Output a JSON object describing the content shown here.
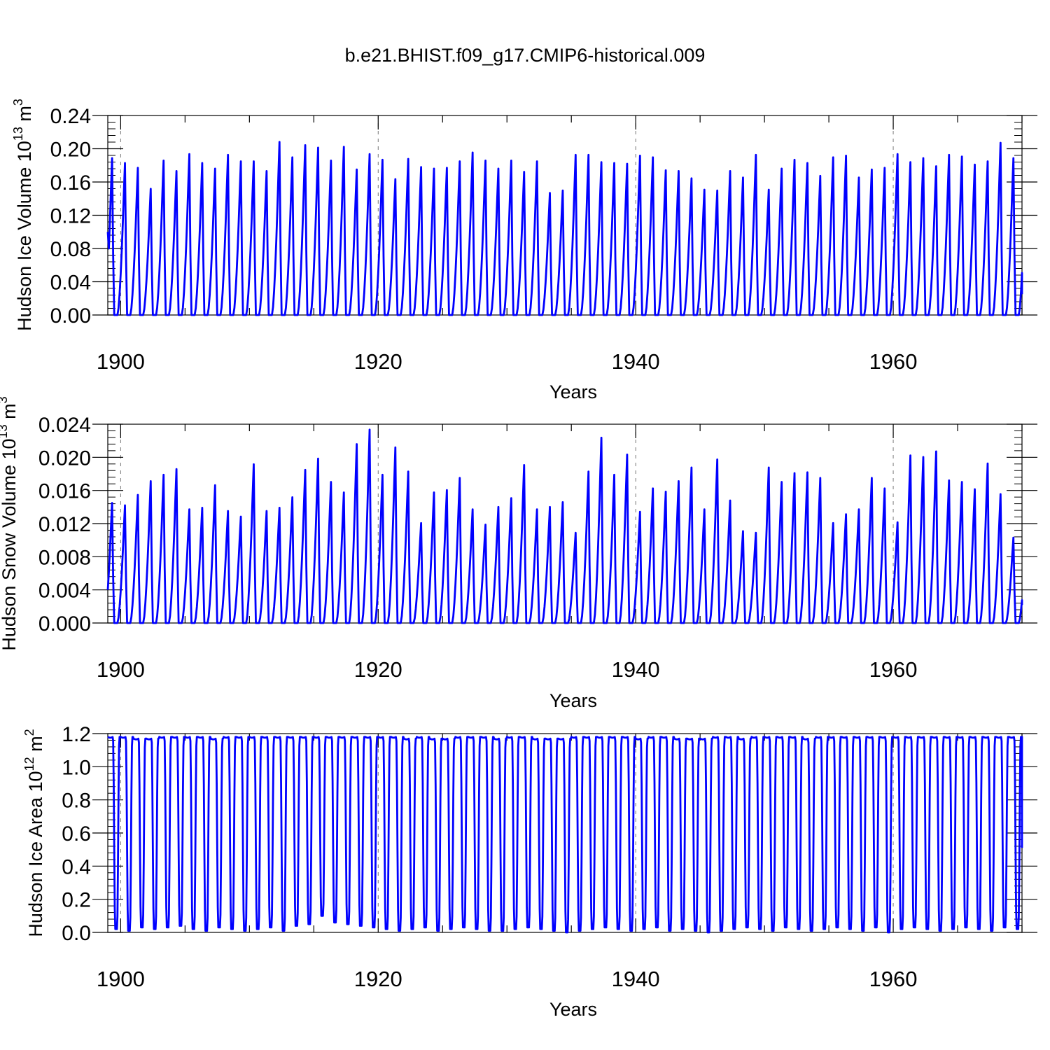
{
  "page": {
    "title": "b.e21.BHIST.f09_g17.CMIP6-historical.009"
  },
  "style": {
    "line_color": "#0000ff",
    "axis_color": "#000000",
    "grid_color": "#777777"
  },
  "chart_data": [
    {
      "type": "line",
      "title": "",
      "ylabel": "Hudson Ice Volume 10",
      "ylabel_exp": "13",
      "ylabel_unit": " m",
      "ylabel_unit_exp": "3",
      "xlabel": "Years",
      "xlim": [
        1899.0,
        1970.0
      ],
      "ylim": [
        0.0,
        0.24
      ],
      "yticks": [
        0.0,
        0.04,
        0.08,
        0.12,
        0.16,
        0.2,
        0.24
      ],
      "ytick_labels": [
        "0.00",
        "0.04",
        "0.08",
        "0.12",
        "0.16",
        "0.20",
        "0.24"
      ],
      "xticks": [
        1900,
        1920,
        1940,
        1960
      ],
      "xtick_labels": [
        "1900",
        "1920",
        "1940",
        "1960"
      ],
      "grid_x": [
        1900,
        1920,
        1940,
        1960
      ],
      "series": [
        {
          "start_value": 0.1,
          "end_value": 0.025,
          "annual_peak_month": 4,
          "annual_min": 0.0,
          "annual_peaks": [
            0.194,
            0.188,
            0.182,
            0.156,
            0.191,
            0.178,
            0.199,
            0.188,
            0.181,
            0.198,
            0.19,
            0.19,
            0.178,
            0.214,
            0.195,
            0.21,
            0.207,
            0.191,
            0.208,
            0.18,
            0.199,
            0.192,
            0.168,
            0.193,
            0.183,
            0.181,
            0.182,
            0.19,
            0.201,
            0.191,
            0.181,
            0.191,
            0.177,
            0.19,
            0.151,
            0.154,
            0.198,
            0.198,
            0.189,
            0.188,
            0.187,
            0.197,
            0.195,
            0.179,
            0.178,
            0.169,
            0.155,
            0.154,
            0.178,
            0.17,
            0.198,
            0.155,
            0.181,
            0.192,
            0.188,
            0.172,
            0.195,
            0.197,
            0.17,
            0.18,
            0.182,
            0.199,
            0.189,
            0.194,
            0.184,
            0.198,
            0.196,
            0.186,
            0.19,
            0.213,
            0.194
          ]
        }
      ]
    },
    {
      "type": "line",
      "title": "",
      "ylabel": "Hudson Snow Volume 10",
      "ylabel_exp": "13",
      "ylabel_unit": " m",
      "ylabel_unit_exp": "3",
      "xlabel": "Years",
      "xlim": [
        1899.0,
        1970.0
      ],
      "ylim": [
        0.0,
        0.024
      ],
      "yticks": [
        0.0,
        0.004,
        0.008,
        0.012,
        0.016,
        0.02,
        0.024
      ],
      "ytick_labels": [
        "0.000",
        "0.004",
        "0.008",
        "0.012",
        "0.016",
        "0.020",
        "0.024"
      ],
      "xticks": [
        1900,
        1920,
        1940,
        1960
      ],
      "xtick_labels": [
        "1900",
        "1920",
        "1940",
        "1960"
      ],
      "grid_x": [
        1900,
        1920,
        1940,
        1960
      ],
      "series": [
        {
          "start_value": 0.004,
          "end_value": 0.0022,
          "annual_peak_month": 4,
          "annual_min": 0.0,
          "annual_peaks": [
            0.0149,
            0.0146,
            0.0159,
            0.0176,
            0.0184,
            0.0191,
            0.0141,
            0.0143,
            0.0171,
            0.0139,
            0.0132,
            0.0197,
            0.0139,
            0.0143,
            0.0156,
            0.019,
            0.0204,
            0.0175,
            0.0162,
            0.0222,
            0.024,
            0.0184,
            0.0218,
            0.0188,
            0.0124,
            0.0162,
            0.0165,
            0.018,
            0.0141,
            0.0122,
            0.0144,
            0.0155,
            0.0196,
            0.0141,
            0.0144,
            0.015,
            0.0112,
            0.0188,
            0.023,
            0.0184,
            0.0209,
            0.0138,
            0.0167,
            0.0163,
            0.0176,
            0.0193,
            0.0141,
            0.0203,
            0.0152,
            0.0114,
            0.0112,
            0.0193,
            0.0175,
            0.0186,
            0.0187,
            0.018,
            0.0124,
            0.0135,
            0.0141,
            0.018,
            0.0167,
            0.0125,
            0.0208,
            0.0206,
            0.0213,
            0.0177,
            0.0175,
            0.0166,
            0.0198,
            0.016,
            0.0106
          ]
        }
      ]
    },
    {
      "type": "line",
      "title": "",
      "ylabel": "Hudson Ice Area 10",
      "ylabel_exp": "12",
      "ylabel_unit": " m",
      "ylabel_unit_exp": "2",
      "xlabel": "Years",
      "xlim": [
        1899.0,
        1970.0
      ],
      "ylim": [
        0.0,
        1.2
      ],
      "yticks": [
        0.0,
        0.2,
        0.4,
        0.6,
        0.8,
        1.0,
        1.2
      ],
      "ytick_labels": [
        "0.0",
        "0.2",
        "0.4",
        "0.6",
        "0.8",
        "1.0",
        "1.2"
      ],
      "xticks": [
        1900,
        1920,
        1940,
        1960
      ],
      "xtick_labels": [
        "1900",
        "1920",
        "1940",
        "1960"
      ],
      "grid_x": [
        1900,
        1920,
        1940,
        1960
      ],
      "series": [
        {
          "start_value": 1.18,
          "end_value": 0.51,
          "annual_plateau": [
            1.18,
            1.18,
            1.17,
            1.17,
            1.18,
            1.18,
            1.18,
            1.18,
            1.17,
            1.18,
            1.18,
            1.18,
            1.18,
            1.18,
            1.18,
            1.18,
            1.18,
            1.18,
            1.18,
            1.18,
            1.18,
            1.18,
            1.18,
            1.17,
            1.18,
            1.17,
            1.17,
            1.18,
            1.18,
            1.18,
            1.17,
            1.18,
            1.18,
            1.17,
            1.17,
            1.17,
            1.18,
            1.18,
            1.18,
            1.18,
            1.18,
            1.17,
            1.18,
            1.18,
            1.17,
            1.17,
            1.17,
            1.18,
            1.18,
            1.17,
            1.18,
            1.18,
            1.18,
            1.18,
            1.17,
            1.18,
            1.18,
            1.18,
            1.18,
            1.18,
            1.18,
            1.18,
            1.18,
            1.18,
            1.18,
            1.18,
            1.18,
            1.18,
            1.18,
            1.18,
            1.18
          ],
          "annual_minima": [
            0.02,
            0.01,
            0.03,
            0.02,
            0.03,
            0.04,
            0.02,
            0.01,
            0.03,
            0.02,
            0.01,
            0.02,
            0.03,
            0.01,
            0.04,
            0.05,
            0.1,
            0.06,
            0.05,
            0.04,
            0.03,
            0.02,
            0.01,
            0.02,
            0.03,
            0.01,
            0.02,
            0.03,
            0.02,
            0.01,
            0.01,
            0.02,
            0.03,
            0.02,
            0.01,
            0.0,
            0.01,
            0.02,
            0.03,
            0.02,
            0.01,
            0.02,
            0.03,
            0.01,
            0.02,
            0.01,
            0.0,
            0.01,
            0.02,
            0.03,
            0.02,
            0.01,
            0.03,
            0.02,
            0.01,
            0.02,
            0.03,
            0.02,
            0.01,
            0.03,
            0.0,
            0.02,
            0.03,
            0.02,
            0.01,
            0.02,
            0.03,
            0.02,
            0.01,
            0.03,
            0.02
          ]
        }
      ]
    }
  ]
}
